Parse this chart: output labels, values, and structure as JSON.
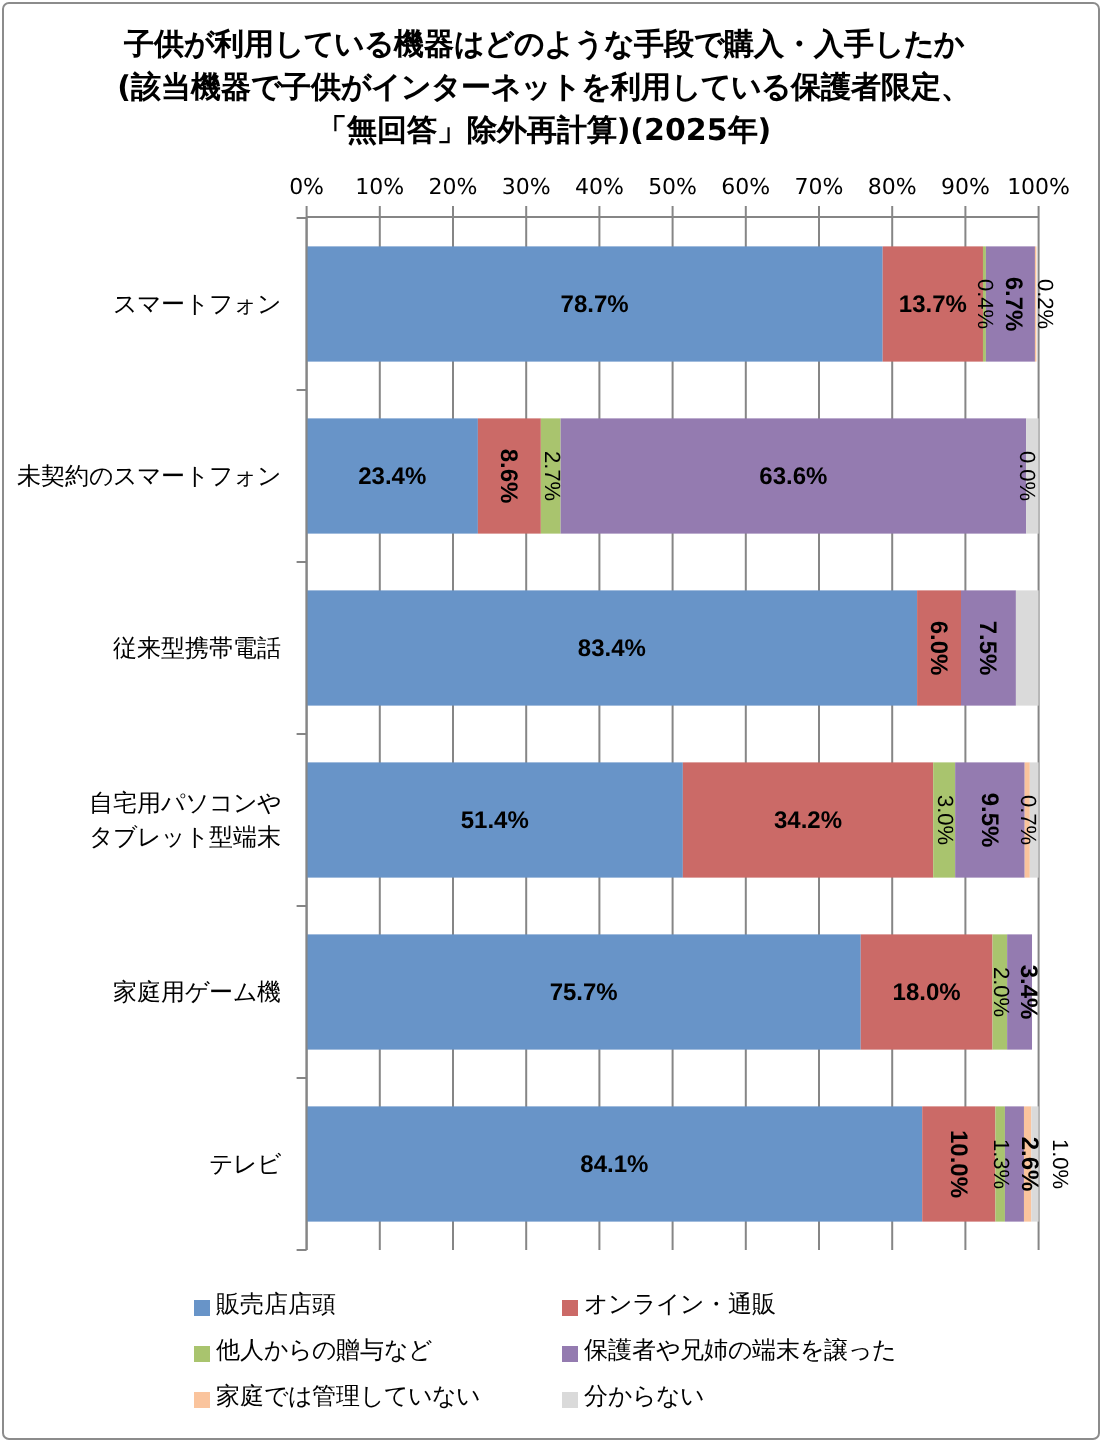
{
  "chart_data": {
    "type": "bar",
    "orientation": "horizontal",
    "stacked": true,
    "title": "子供が利用している機器はどのような手段で購入・入手したか(該当機器で子供がインターネットを利用している保護者限定、「無回答」除外再計算)(2025年)",
    "categories": [
      "スマートフォン",
      "未契約のスマートフォン",
      "従来型携帯電話",
      "自宅用パソコンやタブレット型端末",
      "家庭用ゲーム機",
      "テレビ"
    ],
    "xlim": [
      0,
      100
    ],
    "xticks": [
      {
        "value": 0,
        "label": "0%"
      },
      {
        "value": 10,
        "label": "10%"
      },
      {
        "value": 20,
        "label": "20%"
      },
      {
        "value": 30,
        "label": "30%"
      },
      {
        "value": 40,
        "label": "40%"
      },
      {
        "value": 50,
        "label": "50%"
      },
      {
        "value": 60,
        "label": "60%"
      },
      {
        "value": 70,
        "label": "70%"
      },
      {
        "value": 80,
        "label": "80%"
      },
      {
        "value": 90,
        "label": "90%"
      },
      {
        "value": 100,
        "label": "100%"
      }
    ],
    "grid": "x",
    "legend": "bottom",
    "series": [
      {
        "name": "販売店店頭",
        "color": "#6894c8",
        "values": [
          78.7,
          23.4,
          83.4,
          51.4,
          75.7,
          84.1
        ],
        "value_labels": [
          "78.7%",
          "23.4%",
          "83.4%",
          "51.4%",
          "75.7%",
          "84.1%"
        ]
      },
      {
        "name": "オンライン・通販",
        "color": "#cb6a67",
        "values": [
          13.7,
          8.6,
          6.0,
          34.2,
          18.0,
          10.0
        ],
        "value_labels": [
          "13.7%",
          "8.6%",
          "6.0%",
          "34.2%",
          "18.0%",
          "10.0%"
        ]
      },
      {
        "name": "他人からの贈与など",
        "color": "#a9c46e",
        "values": [
          0.4,
          2.7,
          null,
          3.0,
          2.0,
          1.3
        ],
        "value_labels": [
          "0.4%",
          "2.7%",
          null,
          "3.0%",
          "2.0%",
          "1.3%"
        ]
      },
      {
        "name": "保護者や兄姉の端末を譲った",
        "color": "#947bb0",
        "values": [
          6.7,
          63.6,
          7.5,
          9.5,
          3.4,
          2.6
        ],
        "value_labels": [
          "6.7%",
          "63.6%",
          "7.5%",
          "9.5%",
          "3.4%",
          "2.6%"
        ]
      },
      {
        "name": "家庭では管理していない",
        "color": "#fac49d",
        "values": [
          0.2,
          0.0,
          null,
          0.7,
          null,
          1.0
        ],
        "value_labels": [
          "0.2%",
          "0.0%",
          null,
          "0.7%",
          null,
          "1.0%"
        ]
      },
      {
        "name": "分からない",
        "color": "#dadada",
        "values": [
          null,
          1.7,
          3.1,
          1.2,
          null,
          1.0
        ]
      }
    ]
  }
}
